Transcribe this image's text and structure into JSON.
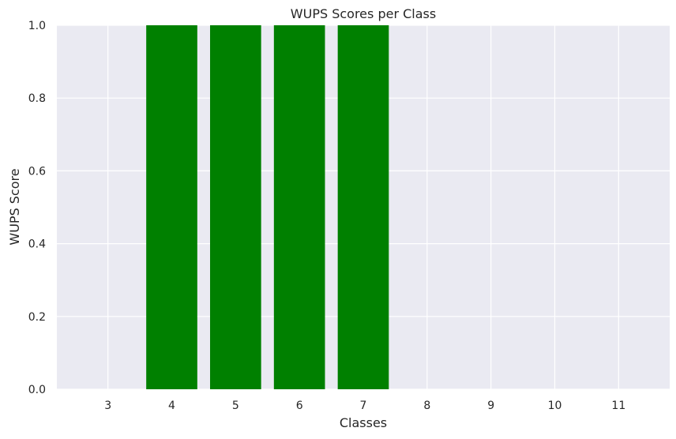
{
  "chart_data": {
    "type": "bar",
    "title": "WUPS Scores per Class",
    "xlabel": "Classes",
    "ylabel": "WUPS Score",
    "categories": [
      "3",
      "4",
      "5",
      "6",
      "7",
      "8",
      "9",
      "10",
      "11"
    ],
    "values": [
      0,
      1.0,
      1.0,
      1.0,
      1.0,
      0,
      0,
      0,
      0
    ],
    "ylim": [
      0,
      1.0
    ],
    "yticks": [
      "0.0",
      "0.2",
      "0.4",
      "0.6",
      "0.8",
      "1.0"
    ],
    "grid": true,
    "colors": {
      "bar": "#008000",
      "plot_bg": "#eaeaf2",
      "grid": "#ffffff",
      "text": "#262626"
    }
  }
}
